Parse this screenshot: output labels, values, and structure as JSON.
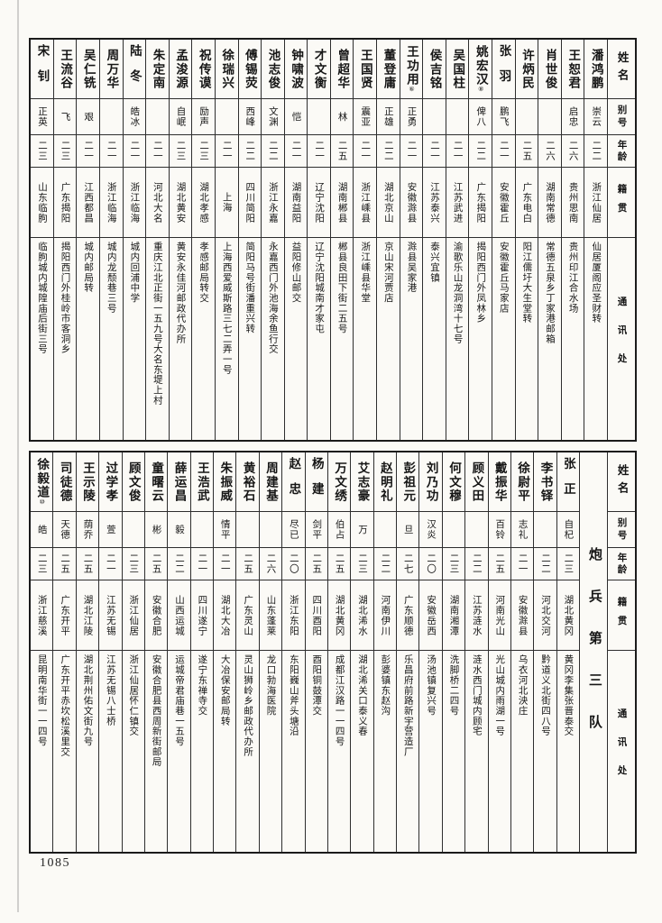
{
  "page_number": "1085",
  "headers": {
    "name": "姓名",
    "alias": "别号",
    "age": "年龄",
    "native": "籍贯",
    "address": "通讯处"
  },
  "tables": [
    {
      "unit_label": "",
      "persons": [
        {
          "name": "潘鸿鹏",
          "note": "",
          "alias": "崇云",
          "age": "二二",
          "native": "浙江仙居",
          "address": "仙居厦阁应圣财转"
        },
        {
          "name": "王恕君",
          "note": "",
          "alias": "启忠",
          "age": "二六",
          "native": "贵州思南",
          "address": "贵州印江合水场"
        },
        {
          "name": "肖世俊",
          "note": "",
          "alias": "",
          "age": "二六",
          "native": "湖南常德",
          "address": "常德五泉乡丁家港邮箱"
        },
        {
          "name": "许炳民",
          "note": "",
          "alias": "",
          "age": "二五",
          "native": "广东电白",
          "address": "阳江儒圩大生堂转"
        },
        {
          "name": "张羽",
          "note": "",
          "alias": "鹏飞",
          "age": "二一",
          "native": "安徽霍丘",
          "address": "安徽霍丘马家店"
        },
        {
          "name": "姚宏汉",
          "note": "⑧",
          "alias": "俾八",
          "age": "二二",
          "native": "广东揭阳",
          "address": "揭阳西门外凤林乡"
        },
        {
          "name": "吴国柱",
          "note": "",
          "alias": "",
          "age": "二一",
          "native": "江苏武进",
          "address": "渝歌乐山龙洞湾十七号"
        },
        {
          "name": "侯吉铭",
          "note": "",
          "alias": "",
          "age": "二一",
          "native": "江苏泰兴",
          "address": "泰兴宜镇"
        },
        {
          "name": "王功用",
          "note": "⑥",
          "alias": "正勇",
          "age": "二一",
          "native": "安徽滁县",
          "address": "滁县吴家港"
        },
        {
          "name": "董登庸",
          "note": "",
          "alias": "正雄",
          "age": "二二",
          "native": "湖北京山",
          "address": "京山宋河贾店"
        },
        {
          "name": "王国贤",
          "note": "",
          "alias": "震亚",
          "age": "二一",
          "native": "浙江嵊县",
          "address": "浙江嵊县华堂"
        },
        {
          "name": "曾超华",
          "note": "",
          "alias": "林",
          "age": "二五",
          "native": "湖南郴县",
          "address": "郴县良田下街二五号"
        },
        {
          "name": "才文衡",
          "note": "",
          "alias": "",
          "age": "二一",
          "native": "辽宁沈阳",
          "address": "辽宁沈阳城南才家屯"
        },
        {
          "name": "钟啸波",
          "note": "",
          "alias": "恺",
          "age": "二一",
          "native": "湖南益阳",
          "address": "益阳修山邮交"
        },
        {
          "name": "池志俊",
          "note": "",
          "alias": "文渊",
          "age": "二二",
          "native": "浙江永嘉",
          "address": "永嘉西门外池海余鱼行交"
        },
        {
          "name": "傅锡荧",
          "note": "",
          "alias": "西峰",
          "age": "二二",
          "native": "四川简阳",
          "address": "简阳马号街潘重兴转"
        },
        {
          "name": "徐瑞兴",
          "note": "",
          "alias": "",
          "age": "二一",
          "native": "上海",
          "address": "上海西爱威斯路三七二弄一号"
        },
        {
          "name": "祝传谟",
          "note": "",
          "alias": "励声",
          "age": "二三",
          "native": "湖北孝感",
          "address": "孝感邮局转交"
        },
        {
          "name": "孟浚源",
          "note": "",
          "alias": "自岷",
          "age": "二三",
          "native": "湖北黄安",
          "address": "黄安永佳河邮政代办所"
        },
        {
          "name": "朱定南",
          "note": "",
          "alias": "",
          "age": "二一",
          "native": "河北大名",
          "address": "重庆江北正街一五九号大名东堤上村"
        },
        {
          "name": "陆冬",
          "note": "",
          "alias": "皓冰",
          "age": "二一",
          "native": "浙江临海",
          "address": "城内回浦中学"
        },
        {
          "name": "周万华",
          "note": "",
          "alias": "",
          "age": "二一",
          "native": "浙江临海",
          "address": "城内龙颓巷三号"
        },
        {
          "name": "吴仁铣",
          "note": "",
          "alias": "艰",
          "age": "二一",
          "native": "江西都昌",
          "address": "城内邮局转"
        },
        {
          "name": "王流谷",
          "note": "",
          "alias": "飞",
          "age": "二三",
          "native": "广东揭阳",
          "address": "揭阳西门外桂岭市客洞乡"
        },
        {
          "name": "宋钊",
          "note": "",
          "alias": "正英",
          "age": "二三",
          "native": "山东临朐",
          "address": "临朐城内城隍庙后街三号"
        }
      ]
    },
    {
      "unit_label": "炮兵第三队",
      "persons": [
        {
          "name": "张正",
          "note": "",
          "alias": "自杞",
          "age": "二三",
          "native": "湖北黄冈",
          "address": "黄冈李集张晋泰交"
        },
        {
          "name": "李书铎",
          "note": "",
          "alias": "",
          "age": "二二",
          "native": "河北交河",
          "address": "黔道义北街四八号"
        },
        {
          "name": "徐尉平",
          "note": "",
          "alias": "志礼",
          "age": "二一",
          "native": "安徽滁县",
          "address": "乌衣河北泱庄"
        },
        {
          "name": "戴振华",
          "note": "",
          "alias": "百铃",
          "age": "二五",
          "native": "河南光山",
          "address": "光山城内雨湖一号"
        },
        {
          "name": "顾义田",
          "note": "",
          "alias": "",
          "age": "二二",
          "native": "江苏涟水",
          "address": "涟水西门城内顾宅"
        },
        {
          "name": "何文穆",
          "note": "",
          "alias": "",
          "age": "二三",
          "native": "湖南湘潭",
          "address": "洗脚桥二四号"
        },
        {
          "name": "刘乃功",
          "note": "",
          "alias": "汉炎",
          "age": "二〇",
          "native": "安徽岳西",
          "address": "汤池镇复兴号"
        },
        {
          "name": "彭祖元",
          "note": "",
          "alias": "旦",
          "age": "二七",
          "native": "广东顺德",
          "address": "乐昌府前路新宇营造厂"
        },
        {
          "name": "赵明礼",
          "note": "",
          "alias": "",
          "age": "二二",
          "native": "河南伊川",
          "address": "彭婆镇东赵沟"
        },
        {
          "name": "艾志豪",
          "note": "",
          "alias": "万",
          "age": "二三",
          "native": "湖北浠水",
          "address": "湖北浠关口泰义春"
        },
        {
          "name": "万文绣",
          "note": "",
          "alias": "伯占",
          "age": "二五",
          "native": "湖北黄冈",
          "address": "成都江汉路一一四号"
        },
        {
          "name": "杨建",
          "note": "",
          "alias": "剑平",
          "age": "二五",
          "native": "四川酉阳",
          "address": "酉阳铜鼓潭交"
        },
        {
          "name": "赵忠",
          "note": "",
          "alias": "尽已",
          "age": "二〇",
          "native": "浙江东阳",
          "address": "东阳巍山斧头塘沿"
        },
        {
          "name": "周建基",
          "note": "",
          "alias": "",
          "age": "二六",
          "native": "山东蓬莱",
          "address": "龙口勃海医院"
        },
        {
          "name": "黄裕石",
          "note": "",
          "alias": "",
          "age": "二五",
          "native": "广东灵山",
          "address": "灵山狮岭乡邮政代办所"
        },
        {
          "name": "朱振威",
          "note": "",
          "alias": "情平",
          "age": "二一",
          "native": "湖北大冶",
          "address": "大冶保安邮局转"
        },
        {
          "name": "王浩武",
          "note": "",
          "alias": "",
          "age": "二一",
          "native": "四川遂宁",
          "address": "遂宁东禅寺交"
        },
        {
          "name": "薛运昌",
          "note": "",
          "alias": "毅",
          "age": "二二",
          "native": "山西运城",
          "address": "运城帝君庙巷一五号"
        },
        {
          "name": "童曙云",
          "note": "",
          "alias": "彬",
          "age": "二五",
          "native": "安徽合肥",
          "address": "安徽合肥县西周新街邮局"
        },
        {
          "name": "顾文俊",
          "note": "",
          "alias": "",
          "age": "二三",
          "native": "浙江仙居",
          "address": "浙江仙居怀仁镇交"
        },
        {
          "name": "过学孝",
          "note": "",
          "alias": "萱",
          "age": "二一",
          "native": "江苏无锡",
          "address": "江苏无锡八士桥"
        },
        {
          "name": "王示陵",
          "note": "",
          "alias": "荫乔",
          "age": "二五",
          "native": "湖北江陵",
          "address": "湖北荆州佑文街九号"
        },
        {
          "name": "司徒德",
          "note": "",
          "alias": "天德",
          "age": "二五",
          "native": "广东开平",
          "address": "广东开平赤坎松溪里交"
        },
        {
          "name": "徐毅道",
          "note": "⑩",
          "alias": "皓",
          "age": "二三",
          "native": "浙江慈溪",
          "address": "昆明南华街一一四号"
        }
      ]
    }
  ]
}
